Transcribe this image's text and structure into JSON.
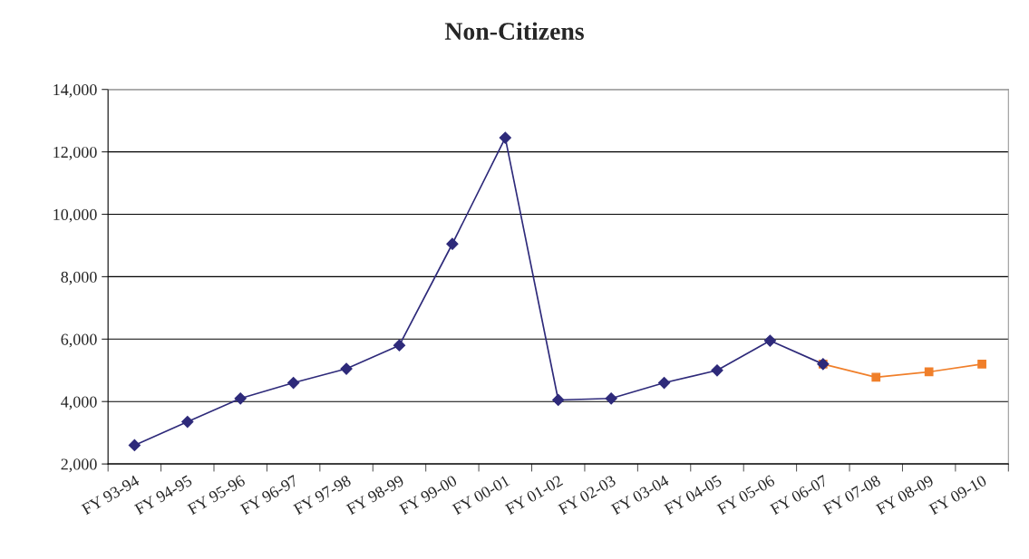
{
  "chart_data": {
    "type": "line",
    "title": "Non-Citizens",
    "categories": [
      "FY 93-94",
      "FY 94-95",
      "FY 95-96",
      "FY 96-97",
      "FY 97-98",
      "FY 98-99",
      "FY 99-00",
      "FY 00-01",
      "FY 01-02",
      "FY 02-03",
      "FY 03-04",
      "FY 04-05",
      "FY 05-06",
      "FY 06-07",
      "FY 07-08",
      "FY 08-09",
      "FY 09-10"
    ],
    "series": [
      {
        "color": "#f07f2a",
        "marker": "square",
        "values": [
          null,
          null,
          null,
          null,
          null,
          null,
          null,
          null,
          null,
          null,
          null,
          null,
          null,
          5200,
          4780,
          4950,
          5200
        ]
      },
      {
        "color": "#2e2a7a",
        "marker": "diamond",
        "values": [
          2600,
          3350,
          4100,
          4600,
          5050,
          5800,
          9050,
          12450,
          4050,
          4100,
          4600,
          5000,
          5950,
          5200,
          null,
          null,
          null
        ]
      }
    ],
    "ylim": [
      2000,
      14000
    ],
    "yticks": [
      {
        "value": 2000,
        "label": "2,000"
      },
      {
        "value": 4000,
        "label": "4,000"
      },
      {
        "value": 6000,
        "label": "6,000"
      },
      {
        "value": 8000,
        "label": "8,000"
      },
      {
        "value": 10000,
        "label": "10,000"
      },
      {
        "value": 12000,
        "label": "12,000"
      },
      {
        "value": 14000,
        "label": "14,000"
      }
    ],
    "grid": "y"
  }
}
